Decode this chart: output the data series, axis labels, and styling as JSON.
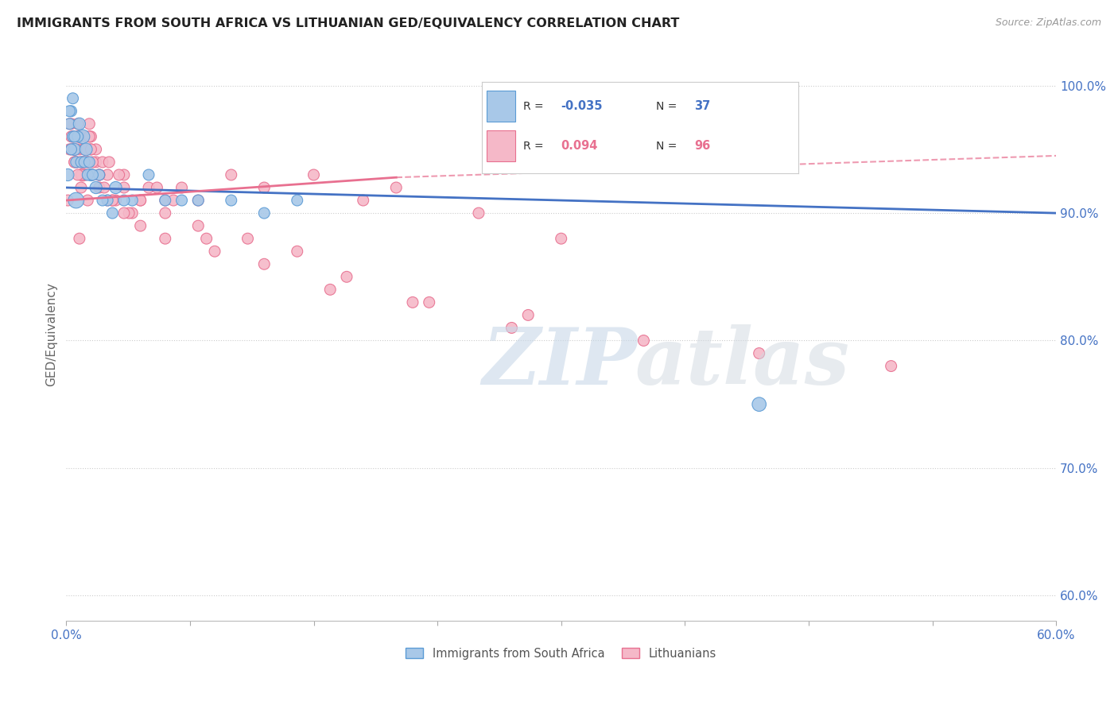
{
  "title": "IMMIGRANTS FROM SOUTH AFRICA VS LITHUANIAN GED/EQUIVALENCY CORRELATION CHART",
  "source": "Source: ZipAtlas.com",
  "ylabel": "GED/Equivalency",
  "ylabel_ticks": [
    "60.0%",
    "70.0%",
    "80.0%",
    "90.0%",
    "100.0%"
  ],
  "ylabel_values": [
    60,
    70,
    80,
    90,
    100
  ],
  "xlim": [
    0,
    60
  ],
  "ylim": [
    58,
    103
  ],
  "color_blue": "#a8c8e8",
  "color_pink": "#f5b8c8",
  "color_blue_edge": "#5b9bd5",
  "color_pink_edge": "#e87090",
  "color_blue_text": "#4472c4",
  "color_pink_text": "#e87090",
  "color_line_blue": "#4472c4",
  "color_line_pink": "#e87090",
  "color_dashed": "#c0c0c0",
  "background": "#ffffff",
  "blue_r": "-0.035",
  "blue_n": "37",
  "pink_r": "0.094",
  "pink_n": "96",
  "blue_trend_x0": 0,
  "blue_trend_y0": 92.0,
  "blue_trend_x1": 60,
  "blue_trend_y1": 90.0,
  "pink_solid_x0": 0,
  "pink_solid_y0": 91.0,
  "pink_solid_x1": 20,
  "pink_solid_y1": 92.8,
  "pink_dash_x0": 20,
  "pink_dash_y0": 92.8,
  "pink_dash_x1": 60,
  "pink_dash_y1": 94.5,
  "blue_scatter_x": [
    0.1,
    0.2,
    0.3,
    0.4,
    0.5,
    0.6,
    0.8,
    1.0,
    1.2,
    1.5,
    1.8,
    2.0,
    2.5,
    3.0,
    4.0,
    5.0,
    7.0,
    8.0,
    10.0,
    12.0,
    14.0,
    42.0,
    3.5,
    0.9,
    1.3,
    6.0,
    0.7,
    1.1,
    2.2,
    0.4,
    0.6,
    1.4,
    1.6,
    2.8,
    0.3,
    0.5,
    0.2
  ],
  "blue_scatter_y": [
    93,
    97,
    98,
    96,
    95,
    94,
    97,
    96,
    95,
    93,
    92,
    93,
    91,
    92,
    91,
    93,
    91,
    91,
    91,
    90,
    91,
    75,
    91,
    94,
    93,
    91,
    96,
    94,
    91,
    99,
    91,
    94,
    93,
    90,
    95,
    96,
    98
  ],
  "blue_scatter_sizes": [
    120,
    100,
    100,
    100,
    120,
    100,
    120,
    160,
    130,
    120,
    120,
    100,
    100,
    120,
    100,
    100,
    100,
    100,
    100,
    100,
    100,
    160,
    100,
    100,
    100,
    100,
    100,
    100,
    100,
    100,
    200,
    100,
    100,
    100,
    100,
    100,
    100
  ],
  "pink_scatter_x": [
    0.1,
    0.2,
    0.3,
    0.4,
    0.5,
    0.6,
    0.7,
    0.8,
    0.9,
    1.0,
    1.1,
    1.2,
    1.3,
    1.4,
    1.5,
    1.6,
    1.8,
    2.0,
    2.2,
    2.5,
    3.0,
    3.5,
    4.0,
    5.0,
    6.0,
    7.0,
    8.0,
    10.0,
    12.0,
    15.0,
    18.0,
    20.0,
    25.0,
    30.0,
    0.3,
    0.4,
    0.5,
    0.6,
    0.8,
    1.0,
    1.2,
    1.4,
    1.6,
    1.8,
    2.0,
    2.3,
    2.8,
    3.2,
    4.5,
    0.2,
    0.7,
    0.9,
    1.1,
    1.3,
    1.5,
    2.5,
    3.8,
    6.5,
    8.5,
    5.5,
    0.4,
    0.6,
    1.0,
    1.4,
    2.0,
    2.6,
    3.5,
    4.5,
    6.0,
    8.0,
    11.0,
    14.0,
    17.0,
    22.0,
    28.0,
    35.0,
    42.0,
    50.0,
    0.3,
    0.5,
    0.7,
    0.9,
    1.1,
    1.5,
    2.0,
    2.8,
    3.5,
    4.5,
    6.0,
    9.0,
    12.0,
    16.0,
    21.0,
    27.0,
    0.8,
    1.3
  ],
  "pink_scatter_y": [
    91,
    95,
    97,
    96,
    95,
    94,
    97,
    96,
    94,
    93,
    96,
    95,
    94,
    97,
    95,
    93,
    94,
    92,
    94,
    93,
    91,
    93,
    90,
    92,
    91,
    92,
    91,
    93,
    92,
    93,
    91,
    92,
    90,
    88,
    96,
    95,
    94,
    96,
    95,
    94,
    93,
    96,
    94,
    95,
    93,
    92,
    91,
    93,
    91,
    97,
    94,
    93,
    95,
    94,
    96,
    91,
    90,
    91,
    88,
    92,
    96,
    95,
    94,
    96,
    93,
    94,
    92,
    91,
    90,
    89,
    88,
    87,
    85,
    83,
    82,
    80,
    79,
    78,
    95,
    94,
    93,
    92,
    94,
    95,
    93,
    91,
    90,
    89,
    88,
    87,
    86,
    84,
    83,
    81,
    88,
    91
  ],
  "pink_scatter_sizes": [
    100,
    100,
    100,
    100,
    100,
    100,
    100,
    120,
    100,
    130,
    100,
    100,
    100,
    100,
    100,
    100,
    100,
    100,
    100,
    100,
    100,
    100,
    100,
    100,
    100,
    100,
    100,
    100,
    100,
    100,
    100,
    100,
    100,
    100,
    100,
    100,
    100,
    100,
    100,
    100,
    100,
    100,
    100,
    100,
    100,
    100,
    100,
    100,
    100,
    100,
    100,
    100,
    100,
    100,
    100,
    100,
    100,
    100,
    100,
    100,
    100,
    100,
    100,
    100,
    100,
    100,
    100,
    100,
    100,
    100,
    100,
    100,
    100,
    100,
    100,
    100,
    100,
    100,
    100,
    100,
    100,
    100,
    100,
    100,
    100,
    100,
    100,
    100,
    100,
    100,
    100,
    100,
    100,
    100,
    100,
    100
  ]
}
